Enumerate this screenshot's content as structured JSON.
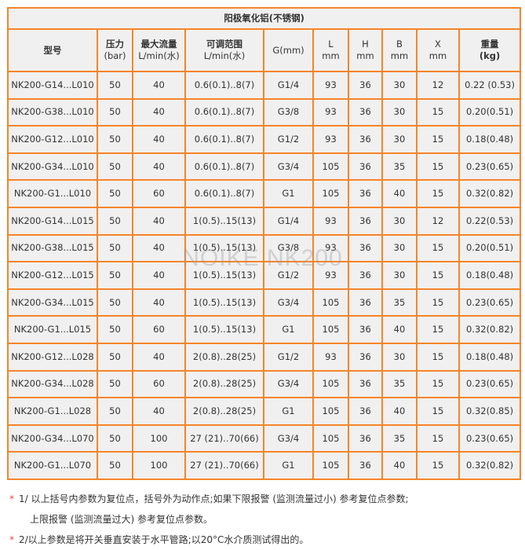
{
  "title": "阳极氧化铝(不锈钢)",
  "headers": [
    [
      "型号"
    ],
    [
      "压力",
      "(bar)"
    ],
    [
      "最大流量",
      "L/min(水)"
    ],
    [
      "可调范围",
      "L/min(水)"
    ],
    [
      "G(mm)"
    ],
    [
      "L",
      "mm"
    ],
    [
      "H",
      "mm"
    ],
    [
      "B",
      "mm"
    ],
    [
      "X",
      "mm"
    ],
    [
      "重量",
      "(kg)"
    ]
  ],
  "rows": [
    [
      "NK200-G14...L010",
      "50",
      "40",
      "0.6(0.1)..8(7)",
      "G1/4",
      "93",
      "36",
      "30",
      "12",
      "0.22 (0.53)"
    ],
    [
      "NK200-G38...L010",
      "50",
      "40",
      "0.6(0.1)..8(7)",
      "G3/8",
      "93",
      "36",
      "30",
      "15",
      "0.20(0.51)"
    ],
    [
      "NK200-G12...L010",
      "50",
      "40",
      "0.6(0.1)..8(7)",
      "G1/2",
      "93",
      "36",
      "30",
      "15",
      "0.18(0.48)"
    ],
    [
      "NK200-G34...L010",
      "50",
      "40",
      "0.6(0.1)..8(7)",
      "G3/4",
      "105",
      "36",
      "35",
      "15",
      "0.23(0.65)"
    ],
    [
      "NK200-G1...L010",
      "50",
      "60",
      "0.6(0.1)..8(7)",
      "G1",
      "105",
      "36",
      "40",
      "15",
      "0.32(0.82)"
    ],
    [
      "NK200-G14...L015",
      "50",
      "40",
      "1(0.5)..15(13)",
      "G1/4",
      "93",
      "36",
      "30",
      "12",
      "0.22(0.53)"
    ],
    [
      "NK200-G38...L015",
      "50",
      "40",
      "1(0.5)..15(13)",
      "G3/8",
      "93",
      "36",
      "30",
      "15",
      "0.20(0.51)"
    ],
    [
      "NK200-G12...L015",
      "50",
      "40",
      "1(0.5)..15(13)",
      "G1/2",
      "93",
      "36",
      "30",
      "15",
      "0.18(0.48)"
    ],
    [
      "NK200-G34...L015",
      "50",
      "40",
      "1(0.5)..15(13)",
      "G3/4",
      "105",
      "36",
      "35",
      "15",
      "0.23(0.65)"
    ],
    [
      "NK200-G1...L015",
      "50",
      "60",
      "1(0.5)..15(13)",
      "G1",
      "105",
      "36",
      "40",
      "15",
      "0.32(0.82)"
    ],
    [
      "NK200-G12...L028",
      "50",
      "40",
      "2(0.8)..28(25)",
      "G1/2",
      "93",
      "36",
      "30",
      "15",
      "0.18(0.48)"
    ],
    [
      "NK200-G34...L028",
      "50",
      "60",
      "2(0.8)..28(25)",
      "G3/4",
      "105",
      "36",
      "35",
      "15",
      "0.23(0.65)"
    ],
    [
      "NK200-G1...L028",
      "50",
      "40",
      "2(0.8)..28(25)",
      "G1",
      "105",
      "36",
      "40",
      "15",
      "0.32(0.85)"
    ],
    [
      "NK200-G34...L070",
      "50",
      "100",
      "27 (21)..70(66)",
      "G3/4",
      "105",
      "36",
      "35",
      "15",
      "0.23(0.65)"
    ],
    [
      "NK200-G1...L070",
      "50",
      "100",
      "27 (21)..70(66)",
      "G1",
      "105",
      "36",
      "40",
      "15",
      "0.32(0.82)"
    ]
  ],
  "watermark": "NOIKE  NK200",
  "notes": {
    "star": "*",
    "note1_line1": "1/ 以上括号内参数为复位点，括号外为动作点;如果下限报警 (监测流量过小) 参考复位点参数;",
    "note1_line2": "上限报警 (监测流量过大) 参考复位点参数。",
    "note2": "2/以上参数是将开关垂直安装于水平管路;以20°C水介质测试得出的。"
  },
  "colors": {
    "border": "#f5852a",
    "cell_bg": "#f0f0f0",
    "star": "#e8463a"
  }
}
